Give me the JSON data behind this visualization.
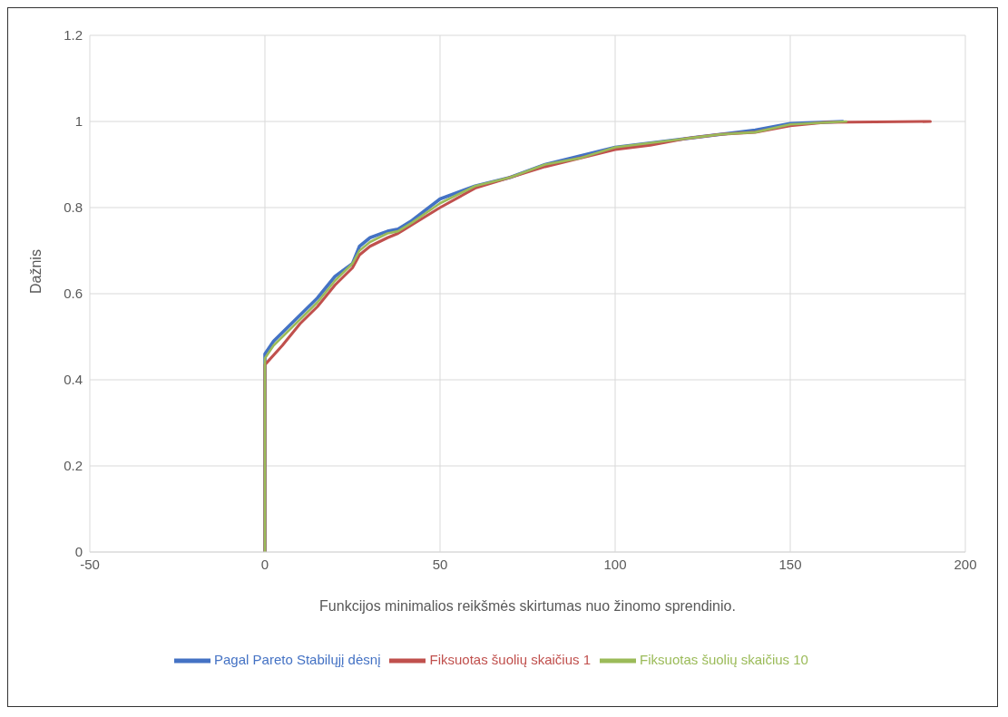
{
  "chart_data": {
    "type": "line",
    "xlabel": "Funkcijos minimalios reikšmės skirtumas nuo žinomo sprendinio.",
    "ylabel": "Dažnis",
    "xlim": [
      -50,
      200
    ],
    "xticks": [
      -50,
      0,
      50,
      100,
      150,
      200
    ],
    "ylim": [
      0,
      1.2
    ],
    "yticks": [
      0,
      0.2,
      0.4,
      0.6,
      0.8,
      1,
      {
        "value": 1.2,
        "label": "1.2"
      }
    ],
    "grid": true,
    "legend": "bottom",
    "marker": "none",
    "line_style": "solid",
    "series": [
      {
        "name": "Pagal Pareto Stabilųjį dėsnį",
        "color": "#4472c4",
        "x": [
          0,
          0,
          2.5,
          5,
          10,
          15,
          20,
          25,
          27,
          30,
          35,
          38,
          42,
          50,
          60,
          70,
          80,
          90,
          100,
          110,
          120,
          130,
          140,
          150,
          165
        ],
        "values": [
          0,
          0.46,
          0.49,
          0.51,
          0.55,
          0.59,
          0.64,
          0.67,
          0.71,
          0.73,
          0.745,
          0.75,
          0.77,
          0.82,
          0.85,
          0.87,
          0.9,
          0.92,
          0.94,
          0.95,
          0.96,
          0.97,
          0.98,
          0.995,
          1
        ]
      },
      {
        "name": "Fiksuotas šuolių skaičius 1",
        "color": "#c0504d",
        "x": [
          0,
          0,
          5,
          10,
          15,
          20,
          25,
          27,
          30,
          35,
          38,
          42,
          50,
          60,
          70,
          80,
          90,
          100,
          110,
          120,
          130,
          140,
          150,
          160,
          190
        ],
        "values": [
          0,
          0.435,
          0.48,
          0.53,
          0.57,
          0.62,
          0.66,
          0.69,
          0.71,
          0.73,
          0.74,
          0.76,
          0.8,
          0.845,
          0.87,
          0.895,
          0.915,
          0.935,
          0.945,
          0.96,
          0.97,
          0.975,
          0.99,
          0.998,
          1
        ]
      },
      {
        "name": "Fiksuotas šuolių skaičius 10",
        "color": "#9bbb59",
        "x": [
          0,
          0,
          2.5,
          5,
          10,
          15,
          20,
          25,
          27,
          30,
          35,
          38,
          42,
          50,
          60,
          70,
          80,
          90,
          100,
          110,
          120,
          130,
          140,
          150,
          166
        ],
        "values": [
          0,
          0.45,
          0.48,
          0.5,
          0.54,
          0.58,
          0.63,
          0.67,
          0.7,
          0.72,
          0.74,
          0.745,
          0.765,
          0.81,
          0.85,
          0.87,
          0.9,
          0.915,
          0.94,
          0.95,
          0.96,
          0.97,
          0.975,
          0.993,
          1
        ]
      }
    ]
  }
}
